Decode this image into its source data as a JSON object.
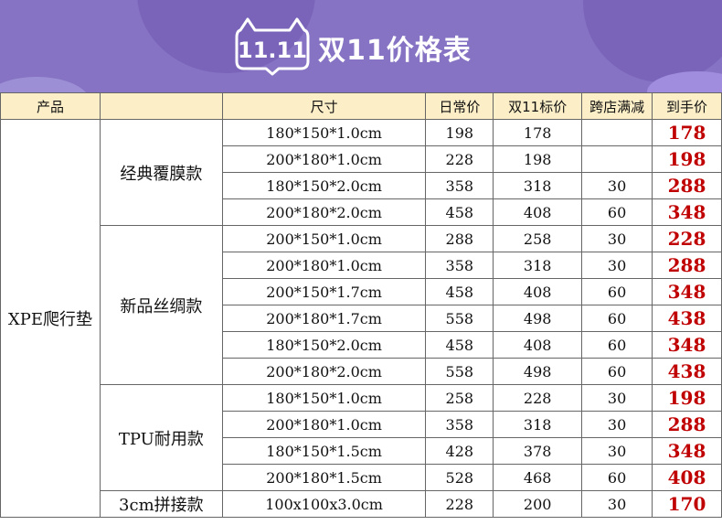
{
  "header": {
    "logo_text": "11.11",
    "title": "双11价格表"
  },
  "table": {
    "columns": [
      "产品",
      "尺寸",
      "日常价",
      "双11标价",
      "跨店满减",
      "到手价"
    ],
    "product": "XPE爬行垫",
    "groups": [
      {
        "series": "经典覆膜款",
        "rows": [
          {
            "size": "180*150*1.0cm",
            "daily": "198",
            "d11": "178",
            "discount": "",
            "final": "178"
          },
          {
            "size": "200*180*1.0cm",
            "daily": "228",
            "d11": "198",
            "discount": "",
            "final": "198"
          },
          {
            "size": "180*150*2.0cm",
            "daily": "358",
            "d11": "318",
            "discount": "30",
            "final": "288"
          },
          {
            "size": "200*180*2.0cm",
            "daily": "458",
            "d11": "408",
            "discount": "60",
            "final": "348"
          }
        ]
      },
      {
        "series": "新品丝绸款",
        "rows": [
          {
            "size": "200*150*1.0cm",
            "daily": "288",
            "d11": "258",
            "discount": "30",
            "final": "228"
          },
          {
            "size": "200*180*1.0cm",
            "daily": "358",
            "d11": "318",
            "discount": "30",
            "final": "288"
          },
          {
            "size": "200*150*1.7cm",
            "daily": "458",
            "d11": "408",
            "discount": "60",
            "final": "348"
          },
          {
            "size": "200*180*1.7cm",
            "daily": "558",
            "d11": "498",
            "discount": "60",
            "final": "438"
          },
          {
            "size": "180*150*2.0cm",
            "daily": "458",
            "d11": "408",
            "discount": "60",
            "final": "348"
          },
          {
            "size": "200*180*2.0cm",
            "daily": "558",
            "d11": "498",
            "discount": "60",
            "final": "438"
          }
        ]
      },
      {
        "series": "TPU耐用款",
        "rows": [
          {
            "size": "180*150*1.0cm",
            "daily": "258",
            "d11": "228",
            "discount": "30",
            "final": "198"
          },
          {
            "size": "200*180*1.0cm",
            "daily": "358",
            "d11": "318",
            "discount": "30",
            "final": "288"
          },
          {
            "size": "180*150*1.5cm",
            "daily": "428",
            "d11": "378",
            "discount": "30",
            "final": "348"
          },
          {
            "size": "200*180*1.5cm",
            "daily": "528",
            "d11": "468",
            "discount": "60",
            "final": "408"
          }
        ]
      },
      {
        "series": "3cm拼接款",
        "rows": [
          {
            "size": "100x100x3.0cm",
            "daily": "228",
            "d11": "200",
            "discount": "30",
            "final": "170"
          }
        ]
      }
    ]
  },
  "colors": {
    "banner": "#8673c4",
    "header_row": "#fcefc8",
    "final_price": "#c00000"
  }
}
